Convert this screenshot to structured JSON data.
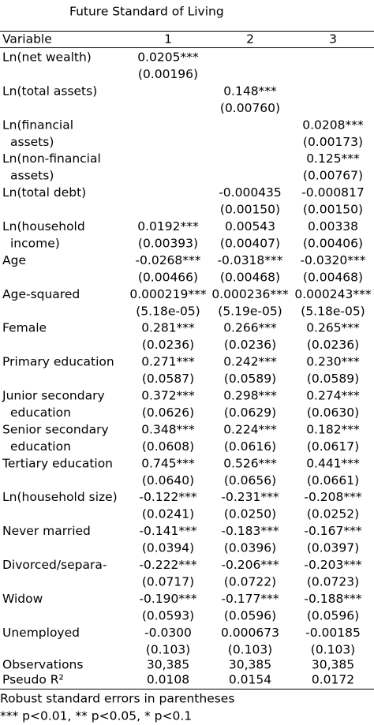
{
  "title": "Future Standard of Living",
  "header": [
    "Variable",
    "1",
    "2",
    "3"
  ],
  "rows": [
    {
      "label": [
        "Ln(net wealth)"
      ],
      "cells": [
        [
          "0.0205***",
          "(0.00196)"
        ],
        null,
        null
      ]
    },
    {
      "label": [
        "Ln(total assets)"
      ],
      "cells": [
        null,
        [
          "0.148***",
          "(0.00760)"
        ],
        null
      ]
    },
    {
      "label": [
        "Ln(financial",
        "assets)"
      ],
      "cells": [
        null,
        null,
        [
          "0.0208***",
          "(0.00173)"
        ]
      ]
    },
    {
      "label": [
        "Ln(non-financial",
        "assets)"
      ],
      "cells": [
        null,
        null,
        [
          "0.125***",
          "(0.00767)"
        ]
      ]
    },
    {
      "label": [
        "Ln(total debt)"
      ],
      "cells": [
        null,
        [
          "-0.000435",
          "(0.00150)"
        ],
        [
          "-0.000817",
          "(0.00150)"
        ]
      ]
    },
    {
      "label": [
        "Ln(household",
        "income)"
      ],
      "cells": [
        [
          "0.0192***",
          "(0.00393)"
        ],
        [
          "0.00543",
          "(0.00407)"
        ],
        [
          "0.00338",
          "(0.00406)"
        ]
      ]
    },
    {
      "label": [
        "Age"
      ],
      "cells": [
        [
          "-0.0268***",
          "(0.00466)"
        ],
        [
          "-0.0318***",
          "(0.00468)"
        ],
        [
          "-0.0320***",
          "(0.00468)"
        ]
      ]
    },
    {
      "label": [
        "Age-squared"
      ],
      "cells": [
        [
          "0.000219***",
          "(5.18e-05)"
        ],
        [
          "0.000236***",
          "(5.19e-05)"
        ],
        [
          "0.000243***",
          "(5.18e-05)"
        ]
      ]
    },
    {
      "label": [
        "Female"
      ],
      "cells": [
        [
          "0.281***",
          "(0.0236)"
        ],
        [
          "0.266***",
          "(0.0236)"
        ],
        [
          "0.265***",
          "(0.0236)"
        ]
      ]
    },
    {
      "label": [
        "Primary education"
      ],
      "cells": [
        [
          "0.271***",
          "(0.0587)"
        ],
        [
          "0.242***",
          "(0.0589)"
        ],
        [
          "0.230***",
          "(0.0589)"
        ]
      ]
    },
    {
      "label": [
        "Junior secondary",
        "education"
      ],
      "cells": [
        [
          "0.372***",
          "(0.0626)"
        ],
        [
          "0.298***",
          "(0.0629)"
        ],
        [
          "0.274***",
          "(0.0630)"
        ]
      ]
    },
    {
      "label": [
        "Senior secondary",
        "education"
      ],
      "cells": [
        [
          "0.348***",
          "(0.0608)"
        ],
        [
          "0.224***",
          "(0.0616)"
        ],
        [
          "0.182***",
          "(0.0617)"
        ]
      ]
    },
    {
      "label": [
        "Tertiary education"
      ],
      "cells": [
        [
          "0.745***",
          "(0.0640)"
        ],
        [
          "0.526***",
          "(0.0656)"
        ],
        [
          "0.441***",
          "(0.0661)"
        ]
      ]
    },
    {
      "label": [
        "Ln(household size)"
      ],
      "cells": [
        [
          "-0.122***",
          "(0.0241)"
        ],
        [
          "-0.231***",
          "(0.0250)"
        ],
        [
          "-0.208***",
          "(0.0252)"
        ]
      ]
    },
    {
      "label": [
        "Never married"
      ],
      "cells": [
        [
          "-0.141***",
          "(0.0394)"
        ],
        [
          "-0.183***",
          "(0.0396)"
        ],
        [
          "-0.167***",
          "(0.0397)"
        ]
      ]
    },
    {
      "label": [
        "Divorced/separa-"
      ],
      "cells": [
        [
          "-0.222***",
          "(0.0717)"
        ],
        [
          "-0.206***",
          "(0.0722)"
        ],
        [
          "-0.203***",
          "(0.0723)"
        ]
      ]
    },
    {
      "label": [
        "Widow"
      ],
      "cells": [
        [
          "-0.190***",
          "(0.0593)"
        ],
        [
          "-0.177***",
          "(0.0596)"
        ],
        [
          "-0.188***",
          "(0.0596)"
        ]
      ]
    },
    {
      "label": [
        "Unemployed"
      ],
      "cells": [
        [
          "-0.0300",
          "(0.103)"
        ],
        [
          "0.000673",
          "(0.103)"
        ],
        [
          "-0.00185",
          "(0.103)"
        ]
      ]
    }
  ],
  "stats": [
    {
      "label": "Observations",
      "cells": [
        "30,385",
        "30,385",
        "30,385"
      ]
    },
    {
      "label": "Pseudo R²",
      "cells": [
        "0.0108",
        "0.0154",
        "0.0172"
      ]
    }
  ],
  "notes": [
    "Robust standard errors in parentheses",
    "*** p<0.01, ** p<0.05, * p<0.1"
  ]
}
